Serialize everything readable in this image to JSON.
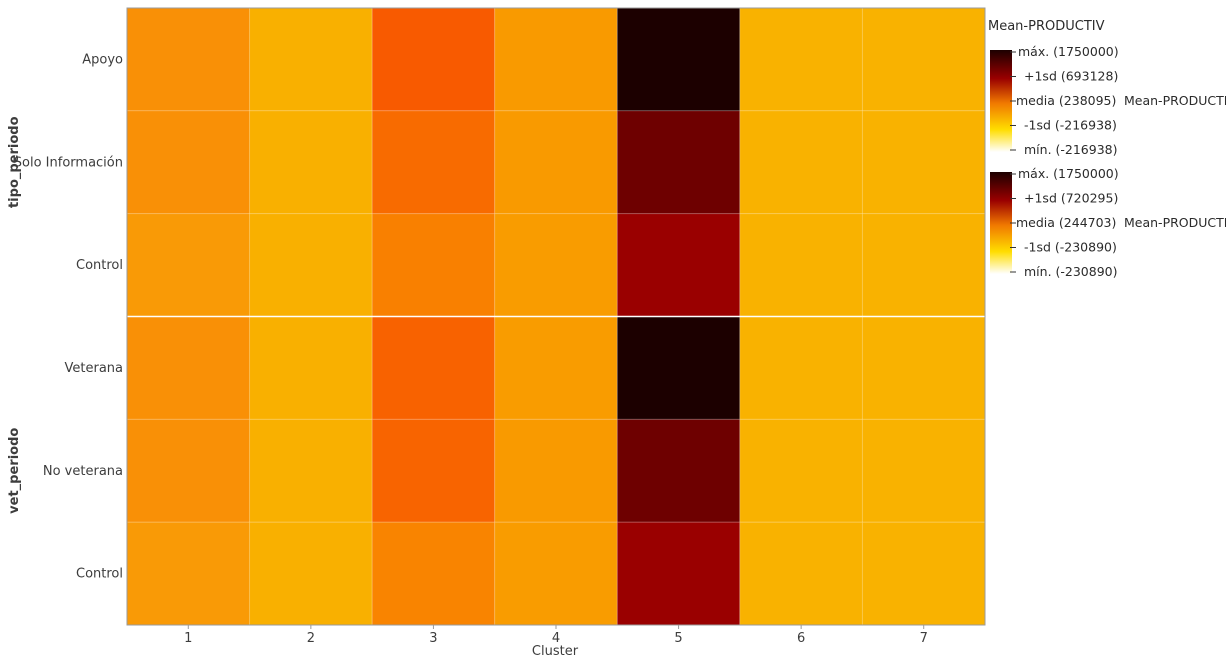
{
  "chart_data": {
    "type": "heatmap",
    "xlabel": "Cluster",
    "x_categories": [
      "1",
      "2",
      "3",
      "4",
      "5",
      "6",
      "7"
    ],
    "groups": [
      {
        "name": "tipo_periodo",
        "rows": [
          {
            "label": "Apoyo",
            "colors": [
              "#f99006",
              "#f9b000",
              "#f85a00",
              "#f99a00",
              "#1c0000",
              "#f9b200",
              "#f9b200"
            ]
          },
          {
            "label": "Solo Información",
            "colors": [
              "#f99006",
              "#f9b000",
              "#f86b00",
              "#f99a00",
              "#6e0000",
              "#f9b200",
              "#f9b200"
            ]
          },
          {
            "label": "Control",
            "colors": [
              "#f99a06",
              "#f9b000",
              "#f98000",
              "#f99c00",
              "#9a0000",
              "#f9b200",
              "#f9b200"
            ]
          }
        ],
        "legend": {
          "title": "Mean-PRODUCTIV",
          "entries": [
            "máx. (1750000)",
            "+1sd (693128)",
            "media (238095)",
            "-1sd (-216938)",
            "mín. (-216938)"
          ],
          "mid_extra": "Mean-PRODUCTIV"
        }
      },
      {
        "name": "vet_periodo",
        "rows": [
          {
            "label": "Veterana",
            "colors": [
              "#f99006",
              "#f9b000",
              "#f86200",
              "#f99c00",
              "#1c0000",
              "#f9b200",
              "#f9b200"
            ]
          },
          {
            "label": "No veterana",
            "colors": [
              "#f99006",
              "#f9b000",
              "#f86400",
              "#f99a00",
              "#6e0000",
              "#f9b200",
              "#f9b200"
            ]
          },
          {
            "label": "Control",
            "colors": [
              "#f99a06",
              "#f9b000",
              "#f98400",
              "#f99c00",
              "#9a0000",
              "#f9b200",
              "#f9b200"
            ]
          }
        ],
        "legend": {
          "title": "",
          "entries": [
            "máx. (1750000)",
            "+1sd (720295)",
            "media (244703)",
            "-1sd (-230890)",
            "mín. (-230890)"
          ],
          "mid_extra": "Mean-PRODUCTIV"
        }
      }
    ],
    "colorscale": [
      "#1c0000",
      "#9a0000",
      "#f08000",
      "#ffd800",
      "#ffffff"
    ]
  }
}
